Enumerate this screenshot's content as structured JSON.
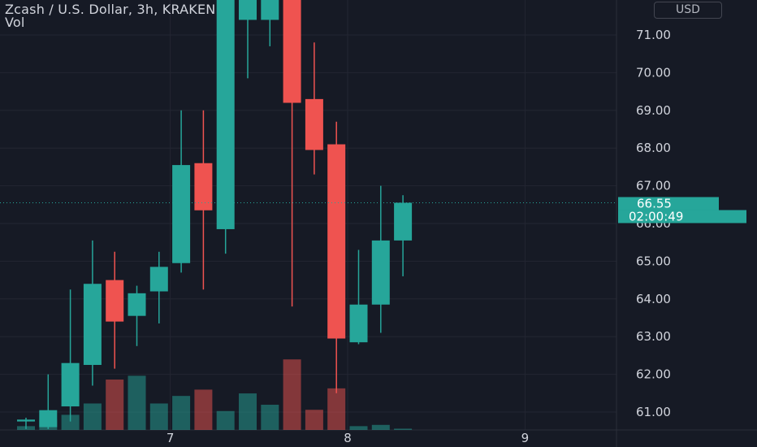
{
  "header": {
    "title": "Zcash / U.S. Dollar, 3h, KRAKEN",
    "vol_label": "Vol",
    "currency_button": "USD"
  },
  "price_tag": {
    "price": "66.55",
    "countdown": "02:00:49"
  },
  "colors": {
    "up": "#26a69a",
    "down": "#ef5350",
    "background": "#161a25",
    "grid": "#232632",
    "text": "#d1d4dc"
  },
  "chart_data": {
    "type": "candlestick",
    "y_ticks": [
      "71.00",
      "70.00",
      "69.00",
      "68.00",
      "67.00",
      "66.00",
      "65.00",
      "64.00",
      "63.00",
      "62.00",
      "61.00"
    ],
    "x_ticks": [
      {
        "label": "7",
        "index": 7
      },
      {
        "label": "8",
        "index": 15
      },
      {
        "label": "9",
        "index": 23
      }
    ],
    "last_price": 66.55,
    "candles": [
      {
        "o": 60.75,
        "h": 60.85,
        "l": 60.55,
        "c": 60.8,
        "vol": 0.3
      },
      {
        "o": 60.6,
        "h": 62.0,
        "l": 60.55,
        "c": 61.05,
        "vol": 0.8
      },
      {
        "o": 61.15,
        "h": 64.25,
        "l": 60.75,
        "c": 62.3,
        "vol": 1.2
      },
      {
        "o": 62.25,
        "h": 65.55,
        "l": 61.7,
        "c": 64.4,
        "vol": 2.1
      },
      {
        "o": 64.5,
        "h": 65.25,
        "l": 62.15,
        "c": 63.4,
        "vol": 4.0
      },
      {
        "o": 63.55,
        "h": 64.35,
        "l": 62.75,
        "c": 64.15,
        "vol": 4.3
      },
      {
        "o": 64.2,
        "h": 65.25,
        "l": 63.35,
        "c": 64.85,
        "vol": 2.1
      },
      {
        "o": 64.95,
        "h": 69.0,
        "l": 64.7,
        "c": 67.55,
        "vol": 2.7
      },
      {
        "o": 67.6,
        "h": 69.0,
        "l": 64.25,
        "c": 66.35,
        "vol": 3.2
      },
      {
        "o": 65.85,
        "h": 72.2,
        "l": 65.2,
        "c": 72.1,
        "vol": 1.5
      },
      {
        "o": 71.4,
        "h": 72.3,
        "l": 69.85,
        "c": 72.0,
        "vol": 2.9
      },
      {
        "o": 71.4,
        "h": 72.3,
        "l": 70.7,
        "c": 72.0,
        "vol": 2.0
      },
      {
        "o": 72.0,
        "h": 72.3,
        "l": 63.8,
        "c": 69.2,
        "vol": 5.6
      },
      {
        "o": 69.3,
        "h": 70.8,
        "l": 67.3,
        "c": 67.95,
        "vol": 1.6
      },
      {
        "o": 68.1,
        "h": 68.7,
        "l": 61.5,
        "c": 62.95,
        "vol": 3.3
      },
      {
        "o": 62.85,
        "h": 65.3,
        "l": 62.8,
        "c": 63.85,
        "vol": 0.3
      },
      {
        "o": 63.85,
        "h": 67.0,
        "l": 63.1,
        "c": 65.55,
        "vol": 0.4
      },
      {
        "o": 65.55,
        "h": 66.75,
        "l": 64.6,
        "c": 66.55,
        "vol": 0.1
      }
    ]
  }
}
